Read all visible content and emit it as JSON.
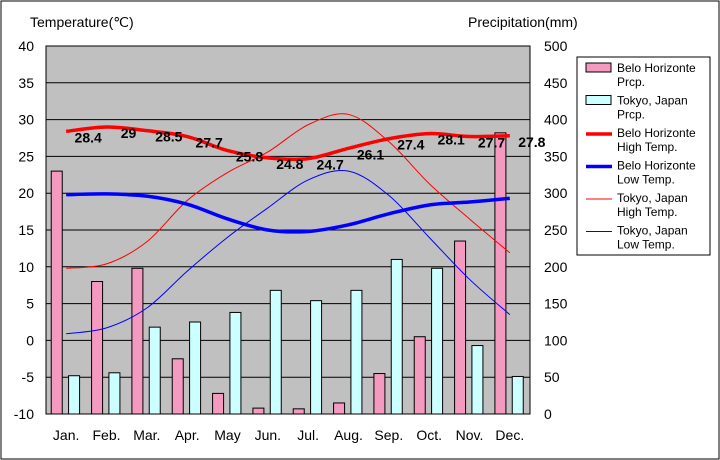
{
  "chart_data": {
    "type": "bar+line",
    "categories": [
      "Jan.",
      "Feb.",
      "Mar.",
      "Apr.",
      "May",
      "Jun.",
      "Jul.",
      "Aug.",
      "Sep.",
      "Oct.",
      "Nov.",
      "Dec."
    ],
    "left_axis": {
      "title": "Temperature(℃)",
      "min": -10,
      "max": 40,
      "step": 5,
      "ticks": [
        "-10",
        "-5",
        "0",
        "5",
        "10",
        "15",
        "20",
        "25",
        "30",
        "35",
        "40"
      ]
    },
    "right_axis": {
      "title": "Precipitation(mm)",
      "min": 0,
      "max": 500,
      "step": 50,
      "ticks": [
        "0",
        "50",
        "100",
        "150",
        "200",
        "250",
        "300",
        "350",
        "400",
        "450",
        "500"
      ]
    },
    "series": [
      {
        "name": "Belo Horizonte Prcp.",
        "legend": [
          "Belo Horizonte",
          "Prcp."
        ],
        "kind": "bar",
        "axis": "right",
        "color": "#f49ac1",
        "values": [
          330,
          180,
          198,
          75,
          28,
          8,
          7,
          15,
          55,
          105,
          235,
          382
        ]
      },
      {
        "name": "Tokyo, Japan Prcp.",
        "legend": [
          "Tokyo, Japan",
          "Prcp."
        ],
        "kind": "bar",
        "axis": "right",
        "color": "#ccffff",
        "values": [
          52,
          56,
          118,
          125,
          138,
          168,
          154,
          168,
          210,
          198,
          93,
          51
        ]
      },
      {
        "name": "Belo Horizonte High Temp.",
        "legend": [
          "Belo Horizonte",
          "High Temp."
        ],
        "kind": "line",
        "axis": "left",
        "color": "#ff0000",
        "width": "thick",
        "values": [
          28.4,
          29.0,
          28.5,
          27.7,
          25.8,
          24.8,
          24.7,
          26.1,
          27.4,
          28.1,
          27.7,
          27.8
        ],
        "labels": [
          "28.4",
          "29",
          "28.5",
          "27.7",
          "25.8",
          "24.8",
          "24.7",
          "26.1",
          "27.4",
          "28.1",
          "27.7",
          "27.8"
        ]
      },
      {
        "name": "Belo Horizonte Low Temp.",
        "legend": [
          "Belo Horizonte",
          "Low Temp."
        ],
        "kind": "line",
        "axis": "left",
        "color": "#0000ff",
        "width": "thick",
        "values": [
          19.8,
          19.9,
          19.6,
          18.5,
          16.5,
          15.0,
          14.8,
          15.7,
          17.2,
          18.4,
          18.8,
          19.3
        ]
      },
      {
        "name": "Tokyo, Japan High Temp.",
        "legend": [
          "Tokyo, Japan",
          "High Temp."
        ],
        "kind": "line",
        "axis": "left",
        "color": "#ff0000",
        "width": "thin",
        "values": [
          9.8,
          10.4,
          13.4,
          19.0,
          22.8,
          25.6,
          29.3,
          30.7,
          27.0,
          21.3,
          16.5,
          11.9
        ]
      },
      {
        "name": "Tokyo, Japan Low Temp.",
        "legend": [
          "Tokyo, Japan",
          "Low Temp."
        ],
        "kind": "line",
        "axis": "left",
        "color": "#0000ff",
        "width": "thin",
        "values": [
          0.9,
          1.7,
          4.4,
          9.4,
          14.0,
          18.0,
          21.8,
          23.0,
          19.7,
          14.0,
          8.3,
          3.5
        ]
      }
    ]
  }
}
